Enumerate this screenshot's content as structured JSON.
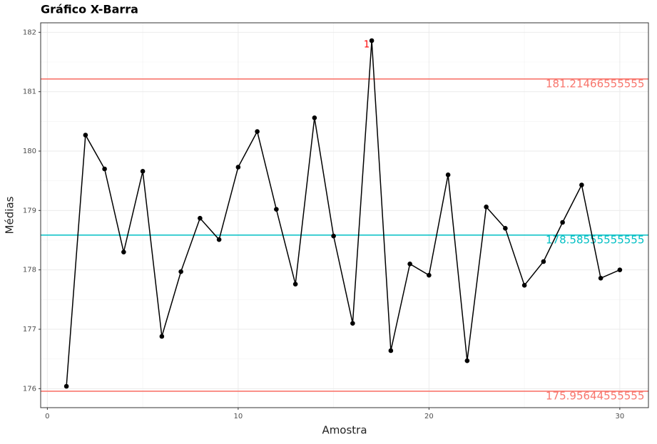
{
  "chart_data": {
    "type": "line",
    "title": "Gráfico X-Barra",
    "x_label": "Amostra",
    "y_label": "Médias",
    "x": [
      1,
      2,
      3,
      4,
      5,
      6,
      7,
      8,
      9,
      10,
      11,
      12,
      13,
      14,
      15,
      16,
      17,
      18,
      19,
      20,
      21,
      22,
      23,
      24,
      25,
      26,
      27,
      28,
      29,
      30
    ],
    "series": [
      {
        "name": "Médias",
        "color": "#000000",
        "values": [
          176.04,
          180.27,
          179.7,
          178.3,
          179.66,
          176.88,
          177.97,
          178.87,
          178.51,
          179.73,
          180.33,
          179.02,
          177.76,
          180.56,
          178.57,
          177.1,
          181.86,
          176.64,
          178.1,
          177.91,
          179.6,
          176.47,
          179.06,
          178.7,
          177.74,
          178.14,
          178.8,
          179.43,
          177.86,
          178.0
        ]
      }
    ],
    "reference_lines": [
      {
        "value": 181.21466555555,
        "label": "181.21466555555",
        "color": "#f8766d"
      },
      {
        "value": 178.58555555555,
        "label": "178.58555555555",
        "color": "#00bfc4"
      },
      {
        "value": 175.95644555555,
        "label": "175.95644555555",
        "color": "#f8766d"
      }
    ],
    "annotations": [
      {
        "x": 17,
        "y": 181.86,
        "text": "1",
        "color": "#ff0000"
      }
    ],
    "xlim": [
      -0.35,
      31.5
    ],
    "ylim": [
      175.68,
      182.16
    ],
    "xticks": [
      0,
      10,
      20,
      30
    ],
    "yticks": [
      176,
      177,
      178,
      179,
      180,
      181,
      182
    ],
    "grid": true
  }
}
